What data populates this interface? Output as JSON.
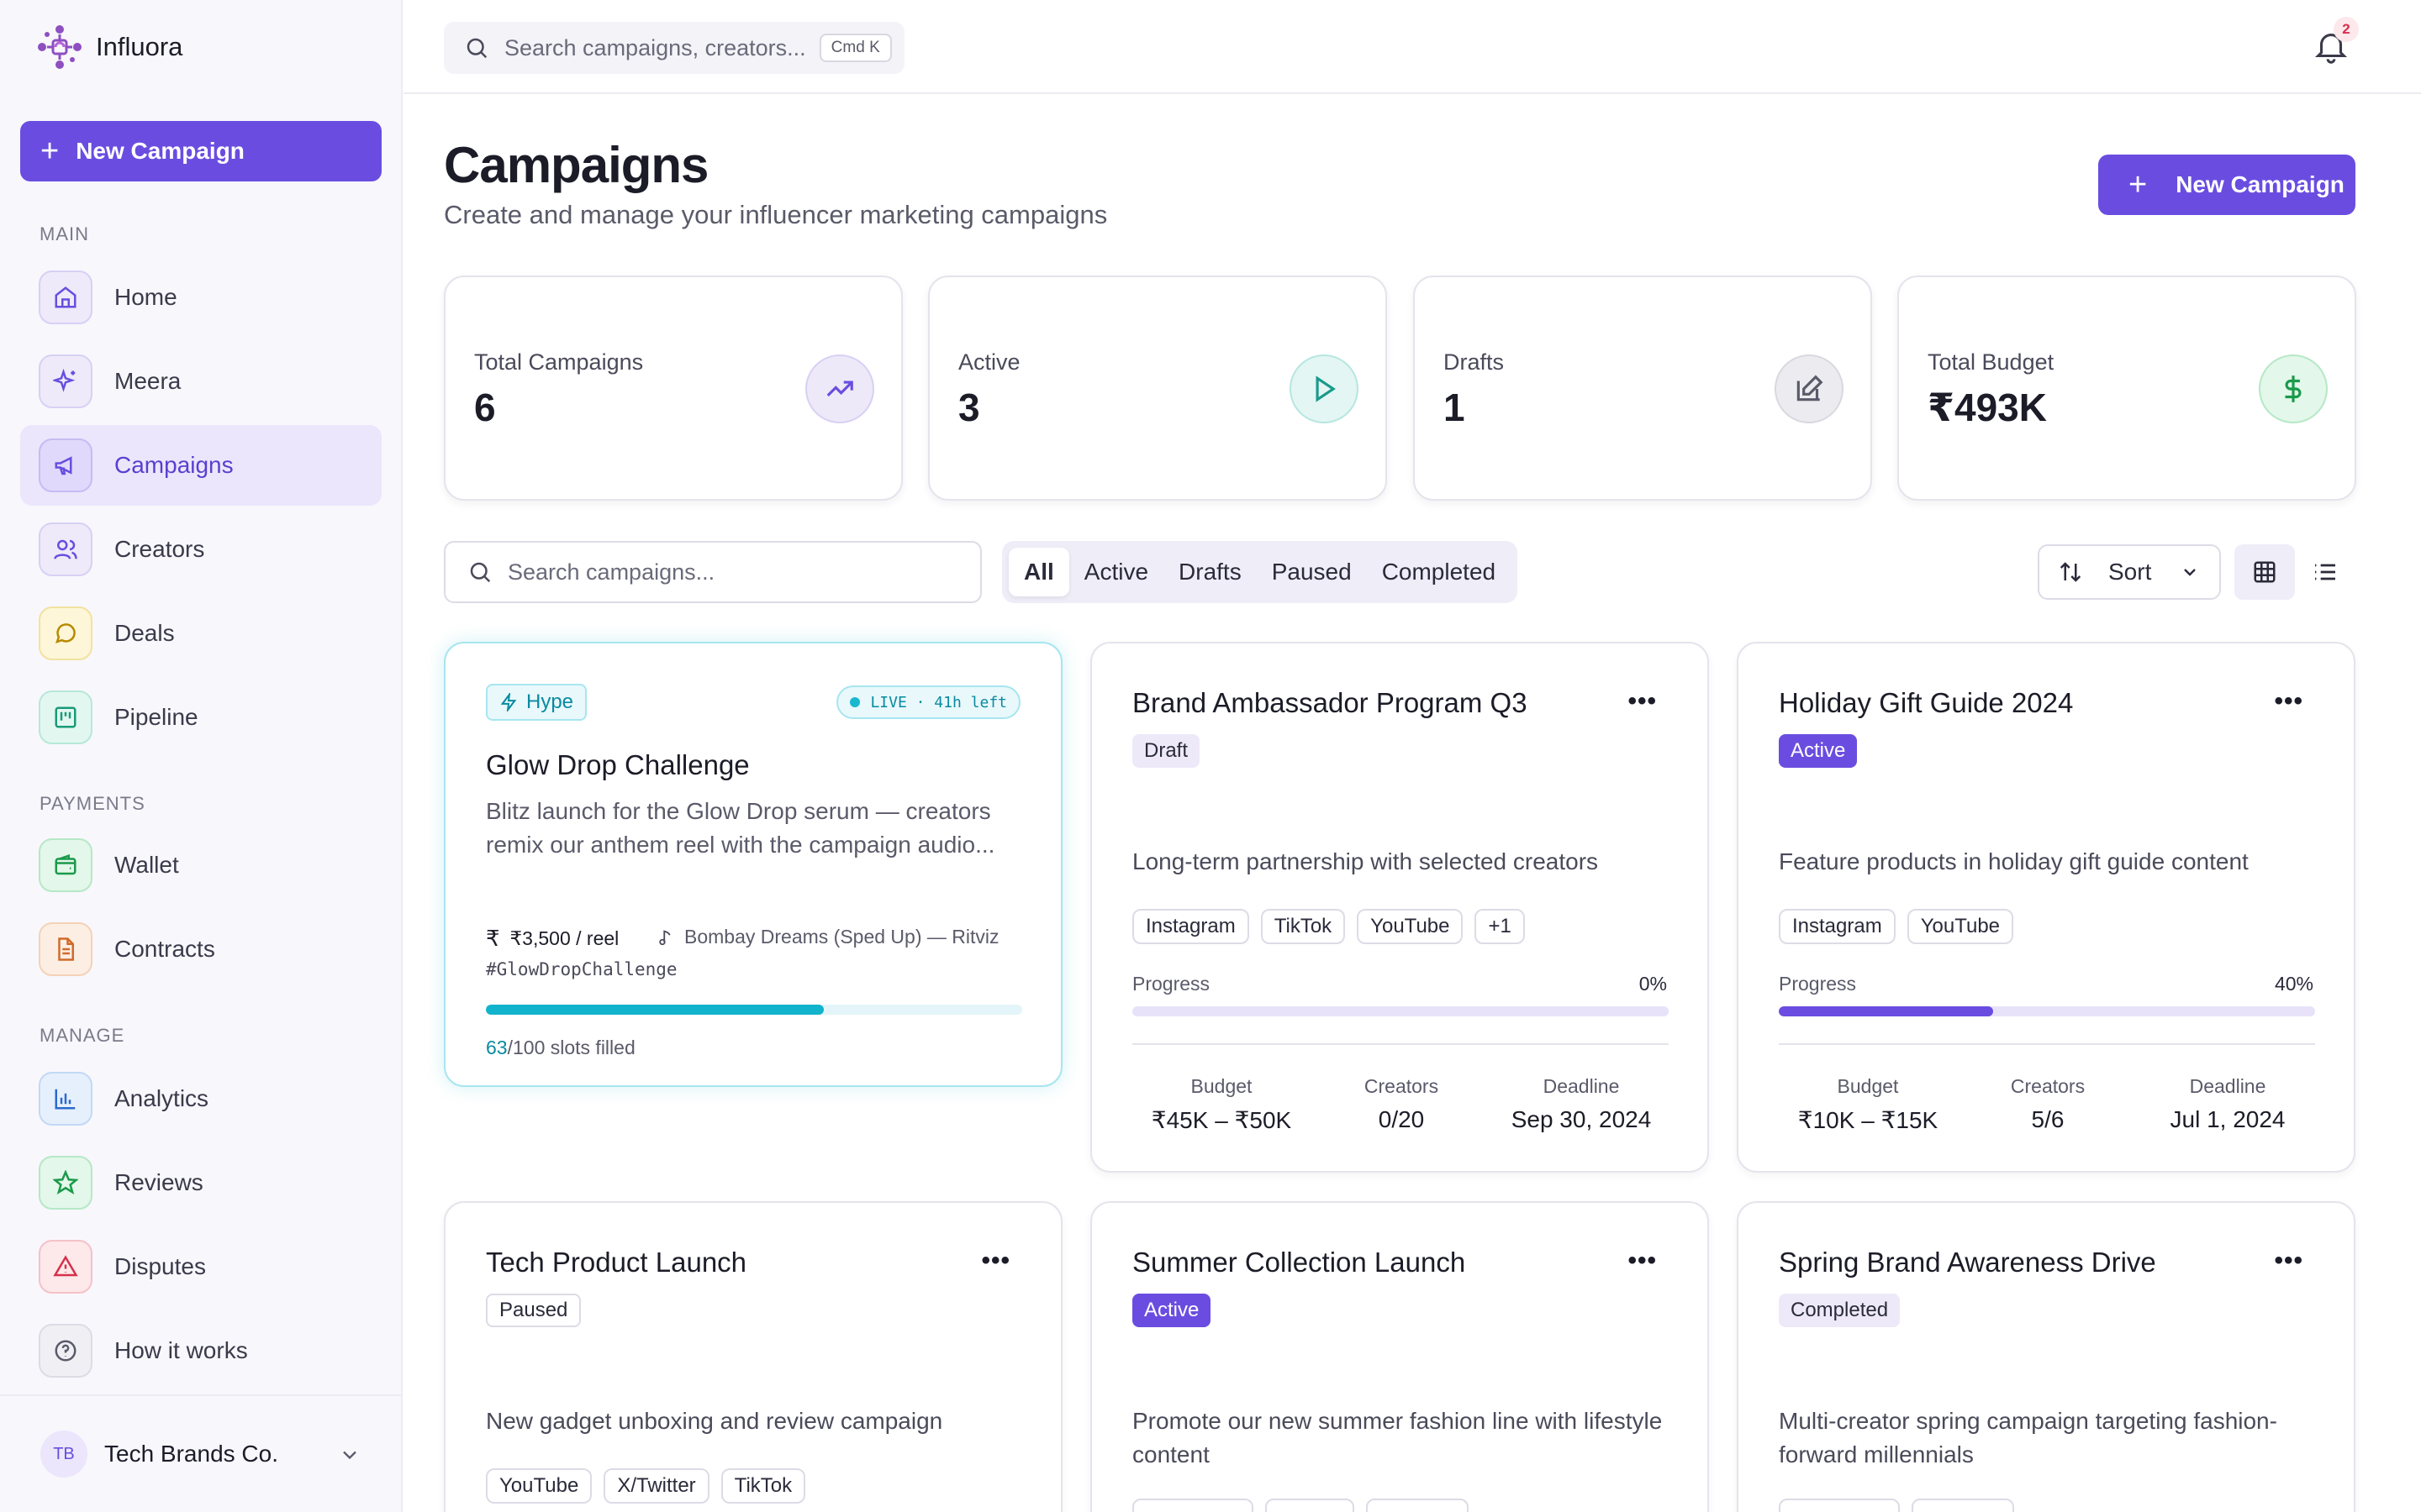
{
  "brand": {
    "name": "Influora"
  },
  "sidebar": {
    "new_campaign": "New Campaign",
    "sections": {
      "main": "MAIN",
      "payments": "PAYMENTS",
      "manage": "MANAGE"
    },
    "items": [
      {
        "label": "Home"
      },
      {
        "label": "Meera"
      },
      {
        "label": "Campaigns"
      },
      {
        "label": "Creators"
      },
      {
        "label": "Deals"
      },
      {
        "label": "Pipeline"
      },
      {
        "label": "Wallet"
      },
      {
        "label": "Contracts"
      },
      {
        "label": "Analytics"
      },
      {
        "label": "Reviews"
      },
      {
        "label": "Disputes"
      },
      {
        "label": "How it works"
      }
    ],
    "account": {
      "initials": "TB",
      "name": "Tech Brands Co."
    }
  },
  "topbar": {
    "search_placeholder": "Search campaigns, creators...",
    "shortcut": "Cmd K",
    "notif_count": "2"
  },
  "header": {
    "title": "Campaigns",
    "subtitle": "Create and manage your influencer marketing campaigns",
    "new_campaign": "New Campaign"
  },
  "stats": [
    {
      "label": "Total Campaigns",
      "value": "6"
    },
    {
      "label": "Active",
      "value": "3"
    },
    {
      "label": "Drafts",
      "value": "1"
    },
    {
      "label": "Total Budget",
      "value": "₹493K"
    }
  ],
  "filters": {
    "search_placeholder": "Search campaigns...",
    "tabs": [
      "All",
      "Active",
      "Drafts",
      "Paused",
      "Completed"
    ],
    "sort": "Sort"
  },
  "hype_card": {
    "tag": "Hype",
    "live": "LIVE · 41h left",
    "title": "Glow Drop Challenge",
    "description": "Blitz launch for the Glow Drop serum — creators remix our anthem reel with the campaign audio...",
    "rate": "₹3,500 / reel",
    "song": "Bombay Dreams (Sped Up) — Ritviz",
    "hashtag": "#GlowDropChallenge",
    "slots_filled": "63",
    "slots_total": "/100 slots filled",
    "fill_fraction": 0.63
  },
  "meta_labels": {
    "budget": "Budget",
    "creators": "Creators",
    "deadline": "Deadline",
    "progress": "Progress"
  },
  "campaigns": [
    {
      "title": "Brand Ambassador Program Q3",
      "status": "Draft",
      "description": "Long-term partnership with selected creators",
      "platforms": [
        "Instagram",
        "TikTok",
        "YouTube",
        "+1"
      ],
      "progress": "0%",
      "progress_value": 0,
      "budget": "₹45K – ₹50K",
      "creators": "0/20",
      "deadline": "Sep 30, 2024"
    },
    {
      "title": "Holiday Gift Guide 2024",
      "status": "Active",
      "description": "Feature products in holiday gift guide content",
      "platforms": [
        "Instagram",
        "YouTube"
      ],
      "progress": "40%",
      "progress_value": 40,
      "budget": "₹10K – ₹15K",
      "creators": "5/6",
      "deadline": "Jul 1, 2024"
    },
    {
      "title": "Tech Product Launch",
      "status": "Paused",
      "description": "New gadget unboxing and review campaign",
      "platforms": [
        "YouTube",
        "X/Twitter",
        "TikTok"
      ]
    },
    {
      "title": "Summer Collection Launch",
      "status": "Active",
      "description": "Promote our new summer fashion line with lifestyle content"
    },
    {
      "title": "Spring Brand Awareness Drive",
      "status": "Completed",
      "description": "Multi-creator spring campaign targeting fashion-forward millennials"
    }
  ],
  "colors": {
    "accent": "#6a4de0",
    "hype": "#12b3cc"
  }
}
